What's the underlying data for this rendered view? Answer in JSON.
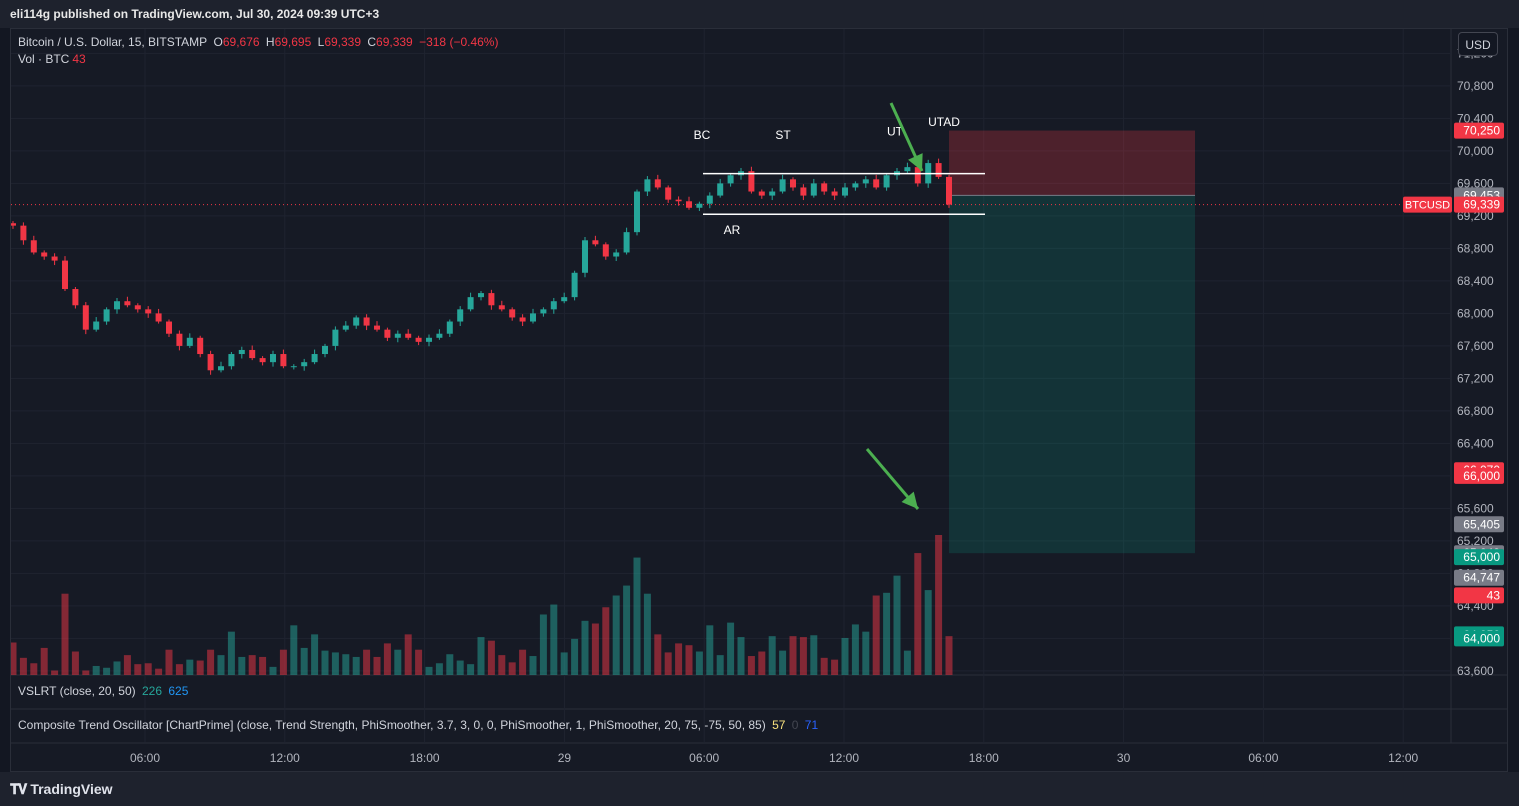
{
  "header": {
    "published": "eli114g published on TradingView.com, Jul 30, 2024 09:39 UTC+3"
  },
  "legend": {
    "symbol": "Bitcoin / U.S. Dollar, 15, BITSTAMP",
    "o_label": "O",
    "o_value": "69,676",
    "h_label": "H",
    "h_value": "69,695",
    "l_label": "L",
    "l_value": "69,339",
    "c_label": "C",
    "c_value": "69,339",
    "change": "−318 (−0.46%)",
    "vol_label": "Vol · BTC",
    "vol_value": "43"
  },
  "indicators": {
    "vslrt": {
      "label": "VSLRT (close, 20, 50)",
      "v1": "226",
      "v2": "625"
    },
    "cto": {
      "label": "Composite Trend Oscillator [ChartPrime] (close, Trend Strength, PhiSmoother, 3.7, 3, 0, 0, PhiSmoother, 1, PhiSmoother, 20, 75, -75, 50, 85)",
      "v1": "57",
      "v2": "0",
      "v3": "71"
    }
  },
  "currency_button": "USD",
  "footer": {
    "brand": "TradingView"
  },
  "colors": {
    "up": "#26a69a",
    "down": "#f23645",
    "bg": "#161a25",
    "grid": "#1f2330",
    "text": "#b2b5be"
  },
  "chart_data": {
    "type": "candlestick",
    "symbol": "BTCUSD",
    "interval": "15",
    "y_ticks": [
      "71,200",
      "70,800",
      "70,400",
      "70,000",
      "69,600",
      "69,200",
      "68,800",
      "68,400",
      "68,000",
      "67,600",
      "67,200",
      "66,800",
      "66,400",
      "66,000",
      "65,600",
      "65,200",
      "64,800",
      "64,400",
      "64,000",
      "63,600"
    ],
    "ylim": [
      63550,
      71500
    ],
    "x_ticks": [
      "06:00",
      "12:00",
      "18:00",
      "29",
      "06:00",
      "12:00",
      "18:00",
      "30",
      "06:00",
      "12:00"
    ],
    "price_labels": [
      {
        "text": "70,250",
        "price": 70250,
        "color": "#f23645"
      },
      {
        "text": "69,453",
        "price": 69453,
        "color": "#787b86"
      },
      {
        "text": "69,339",
        "price": 69339,
        "color": "#f23645"
      },
      {
        "text": "66,070",
        "price": 66070,
        "color": "#f23645"
      },
      {
        "text": "66,000",
        "price": 66000,
        "color": "#f23645"
      },
      {
        "text": "65,405",
        "price": 65405,
        "color": "#787b86"
      },
      {
        "text": "65,049",
        "price": 65049,
        "color": "#787b86"
      },
      {
        "text": "65,000",
        "price": 65000,
        "color": "#089981"
      },
      {
        "text": "64,747",
        "price": 64747,
        "color": "#787b86"
      },
      {
        "text": "43",
        "price": 64530,
        "color": "#f23645"
      },
      {
        "text": "64,050",
        "price": 64050,
        "color": "#089981"
      },
      {
        "text": "64,000",
        "price": 64000,
        "color": "#089981"
      }
    ],
    "symbol_tag": "BTCUSD",
    "last_price": 69339,
    "annotations": [
      {
        "text": "BC",
        "price": 70000
      },
      {
        "text": "ST",
        "price": 70000
      },
      {
        "text": "AR",
        "price": 69200
      },
      {
        "text": "UT",
        "price": 70040
      },
      {
        "text": "UTAD",
        "price": 70160
      }
    ],
    "range_lines": {
      "top": 69720,
      "bottom": 69220
    },
    "position": {
      "entry": 69453,
      "stop": 70250,
      "target": 65049
    },
    "closes": [
      69080,
      68900,
      68750,
      68700,
      68650,
      68300,
      68100,
      67800,
      67900,
      68050,
      68150,
      68100,
      68050,
      68000,
      67900,
      67750,
      67600,
      67700,
      67500,
      67300,
      67350,
      67500,
      67550,
      67450,
      67400,
      67500,
      67350,
      67350,
      67400,
      67500,
      67600,
      67800,
      67850,
      67950,
      67850,
      67800,
      67700,
      67750,
      67700,
      67650,
      67700,
      67750,
      67900,
      68050,
      68200,
      68250,
      68100,
      68050,
      67950,
      67900,
      68000,
      68050,
      68150,
      68200,
      68500,
      68900,
      68850,
      68700,
      68750,
      69000,
      69500,
      69650,
      69550,
      69400,
      69380,
      69300,
      69350,
      69450,
      69600,
      69700,
      69750,
      69500,
      69450,
      69500,
      69650,
      69550,
      69450,
      69600,
      69500,
      69450,
      69550,
      69600,
      69650,
      69550,
      69700,
      69750,
      69800,
      69600,
      69850,
      69680,
      69339
    ],
    "volume": [
      36,
      19,
      13,
      30,
      5,
      90,
      26,
      5,
      10,
      8,
      15,
      22,
      12,
      13,
      7,
      28,
      12,
      17,
      16,
      28,
      22,
      48,
      20,
      22,
      20,
      9,
      28,
      55,
      30,
      45,
      27,
      25,
      23,
      20,
      28,
      20,
      35,
      28,
      45,
      28,
      9,
      13,
      23,
      16,
      12,
      42,
      38,
      22,
      14,
      28,
      21,
      67,
      78,
      25,
      40,
      60,
      57,
      75,
      88,
      99,
      130,
      90,
      45,
      25,
      35,
      33,
      26,
      55,
      22,
      58,
      42,
      21,
      26,
      43,
      27,
      43,
      42,
      44,
      19,
      17,
      41,
      56,
      48,
      88,
      91,
      110,
      27,
      135,
      94,
      155,
      43
    ],
    "volume_ylim": [
      0,
      155
    ]
  }
}
